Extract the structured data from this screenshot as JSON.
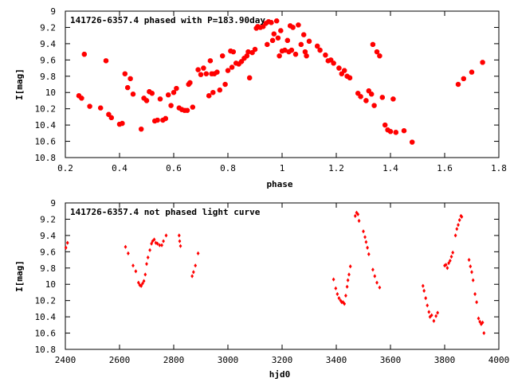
{
  "chart_data": [
    {
      "type": "scatter",
      "title": "141726-6357.4 phased with P=183.90day",
      "xlabel": "phase",
      "ylabel": "I[mag]",
      "xlim": [
        0.2,
        1.8
      ],
      "ylim": [
        9.0,
        10.8
      ],
      "y_inverted": true,
      "grid": false,
      "x_ticks": [
        "0.2",
        "0.4",
        "0.6",
        "0.8",
        "1",
        "1.2",
        "1.4",
        "1.6",
        "1.8"
      ],
      "x_tick_values": [
        0.2,
        0.4,
        0.6,
        0.8,
        1.0,
        1.2,
        1.4,
        1.6,
        1.8
      ],
      "y_ticks": [
        "9",
        "9.2",
        "9.4",
        "9.6",
        "9.8",
        "10",
        "10.2",
        "10.4",
        "10.6",
        "10.8"
      ],
      "y_tick_values": [
        9.0,
        9.2,
        9.4,
        9.6,
        9.8,
        10.0,
        10.2,
        10.4,
        10.6,
        10.8
      ],
      "marker_color": "#ff0000",
      "points": [
        [
          0.25,
          10.04
        ],
        [
          0.26,
          10.07
        ],
        [
          0.27,
          9.53
        ],
        [
          0.29,
          10.17
        ],
        [
          0.33,
          10.19
        ],
        [
          0.35,
          9.61
        ],
        [
          0.36,
          10.27
        ],
        [
          0.37,
          10.31
        ],
        [
          0.4,
          10.39
        ],
        [
          0.41,
          10.38
        ],
        [
          0.42,
          9.77
        ],
        [
          0.43,
          9.94
        ],
        [
          0.44,
          9.83
        ],
        [
          0.45,
          10.02
        ],
        [
          0.48,
          10.45
        ],
        [
          0.49,
          10.07
        ],
        [
          0.5,
          10.1
        ],
        [
          0.51,
          9.99
        ],
        [
          0.52,
          10.01
        ],
        [
          0.53,
          10.35
        ],
        [
          0.54,
          10.34
        ],
        [
          0.55,
          10.08
        ],
        [
          0.56,
          10.34
        ],
        [
          0.57,
          10.32
        ],
        [
          0.58,
          10.03
        ],
        [
          0.59,
          10.16
        ],
        [
          0.6,
          10.0
        ],
        [
          0.61,
          9.95
        ],
        [
          0.62,
          10.19
        ],
        [
          0.63,
          10.21
        ],
        [
          0.64,
          10.22
        ],
        [
          0.65,
          10.22
        ],
        [
          0.655,
          9.9
        ],
        [
          0.66,
          9.88
        ],
        [
          0.67,
          10.18
        ],
        [
          0.69,
          9.72
        ],
        [
          0.7,
          9.78
        ],
        [
          0.71,
          9.7
        ],
        [
          0.72,
          9.77
        ],
        [
          0.73,
          10.04
        ],
        [
          0.735,
          9.61
        ],
        [
          0.74,
          9.77
        ],
        [
          0.745,
          10.0
        ],
        [
          0.75,
          9.77
        ],
        [
          0.76,
          9.75
        ],
        [
          0.77,
          9.97
        ],
        [
          0.78,
          9.55
        ],
        [
          0.79,
          9.9
        ],
        [
          0.8,
          9.73
        ],
        [
          0.81,
          9.49
        ],
        [
          0.815,
          9.69
        ],
        [
          0.82,
          9.5
        ],
        [
          0.83,
          9.64
        ],
        [
          0.84,
          9.65
        ],
        [
          0.85,
          9.62
        ],
        [
          0.86,
          9.58
        ],
        [
          0.87,
          9.55
        ],
        [
          0.875,
          9.5
        ],
        [
          0.88,
          9.82
        ],
        [
          0.89,
          9.51
        ],
        [
          0.9,
          9.47
        ],
        [
          0.905,
          9.21
        ],
        [
          0.91,
          9.19
        ],
        [
          0.92,
          9.2
        ],
        [
          0.93,
          9.19
        ],
        [
          0.94,
          9.15
        ],
        [
          0.945,
          9.41
        ],
        [
          0.95,
          9.13
        ],
        [
          0.96,
          9.14
        ],
        [
          0.965,
          9.36
        ],
        [
          0.97,
          9.28
        ],
        [
          0.98,
          9.12
        ],
        [
          0.985,
          9.33
        ],
        [
          0.99,
          9.55
        ],
        [
          0.995,
          9.24
        ],
        [
          1.0,
          9.49
        ],
        [
          1.01,
          9.48
        ],
        [
          1.02,
          9.36
        ],
        [
          1.025,
          9.5
        ],
        [
          1.03,
          9.18
        ],
        [
          1.035,
          9.48
        ],
        [
          1.04,
          9.2
        ],
        [
          1.05,
          9.53
        ],
        [
          1.06,
          9.17
        ],
        [
          1.07,
          9.41
        ],
        [
          1.08,
          9.29
        ],
        [
          1.085,
          9.5
        ],
        [
          1.09,
          9.55
        ],
        [
          1.1,
          9.37
        ],
        [
          1.13,
          9.43
        ],
        [
          1.14,
          9.48
        ],
        [
          1.16,
          9.54
        ],
        [
          1.17,
          9.61
        ],
        [
          1.18,
          9.6
        ],
        [
          1.19,
          9.64
        ],
        [
          1.21,
          9.7
        ],
        [
          1.22,
          9.77
        ],
        [
          1.23,
          9.73
        ],
        [
          1.24,
          9.8
        ],
        [
          1.25,
          9.82
        ],
        [
          1.28,
          10.01
        ],
        [
          1.29,
          10.05
        ],
        [
          1.31,
          10.1
        ],
        [
          1.32,
          9.98
        ],
        [
          1.33,
          10.02
        ],
        [
          1.335,
          9.41
        ],
        [
          1.34,
          10.16
        ],
        [
          1.35,
          9.5
        ],
        [
          1.36,
          9.55
        ],
        [
          1.37,
          10.06
        ],
        [
          1.38,
          10.4
        ],
        [
          1.39,
          10.46
        ],
        [
          1.4,
          10.48
        ],
        [
          1.41,
          10.08
        ],
        [
          1.42,
          10.49
        ],
        [
          1.45,
          10.47
        ],
        [
          1.48,
          10.61
        ],
        [
          1.65,
          9.9
        ],
        [
          1.67,
          9.83
        ],
        [
          1.7,
          9.75
        ],
        [
          1.74,
          9.63
        ]
      ]
    },
    {
      "type": "scatter",
      "title": "141726-6357.4 not phased light curve",
      "xlabel": "hjd0",
      "ylabel": "I[mag]",
      "xlim": [
        2400,
        4000
      ],
      "ylim": [
        9.0,
        10.8
      ],
      "y_inverted": true,
      "grid": false,
      "x_ticks": [
        "2400",
        "2600",
        "2800",
        "3000",
        "3200",
        "3400",
        "3600",
        "3800",
        "4000"
      ],
      "x_tick_values": [
        2400,
        2600,
        2800,
        3000,
        3200,
        3400,
        3600,
        3800,
        4000
      ],
      "y_ticks": [
        "9",
        "9.2",
        "9.4",
        "9.6",
        "9.8",
        "10",
        "10.2",
        "10.4",
        "10.6",
        "10.8"
      ],
      "y_tick_values": [
        9.0,
        9.2,
        9.4,
        9.6,
        9.8,
        10.0,
        10.2,
        10.4,
        10.6,
        10.8
      ],
      "marker_color": "#ff0000",
      "points": [
        [
          2402,
          9.55
        ],
        [
          2408,
          9.49
        ],
        [
          2622,
          9.54
        ],
        [
          2632,
          9.62
        ],
        [
          2650,
          9.77
        ],
        [
          2660,
          9.84
        ],
        [
          2670,
          9.98
        ],
        [
          2675,
          10.01
        ],
        [
          2680,
          10.02
        ],
        [
          2685,
          9.99
        ],
        [
          2690,
          9.96
        ],
        [
          2695,
          9.88
        ],
        [
          2700,
          9.75
        ],
        [
          2705,
          9.67
        ],
        [
          2712,
          9.58
        ],
        [
          2718,
          9.5
        ],
        [
          2722,
          9.47
        ],
        [
          2728,
          9.45
        ],
        [
          2734,
          9.49
        ],
        [
          2740,
          9.5
        ],
        [
          2748,
          9.52
        ],
        [
          2756,
          9.52
        ],
        [
          2762,
          9.47
        ],
        [
          2772,
          9.4
        ],
        [
          2820,
          9.4
        ],
        [
          2822,
          9.47
        ],
        [
          2825,
          9.53
        ],
        [
          2868,
          9.9
        ],
        [
          2873,
          9.85
        ],
        [
          2880,
          9.77
        ],
        [
          2890,
          9.62
        ],
        [
          3390,
          9.94
        ],
        [
          3398,
          10.05
        ],
        [
          3404,
          10.12
        ],
        [
          3410,
          10.17
        ],
        [
          3416,
          10.2
        ],
        [
          3420,
          10.22
        ],
        [
          3425,
          10.22
        ],
        [
          3430,
          10.24
        ],
        [
          3435,
          10.14
        ],
        [
          3440,
          10.03
        ],
        [
          3443,
          9.95
        ],
        [
          3447,
          9.88
        ],
        [
          3452,
          9.78
        ],
        [
          3470,
          9.16
        ],
        [
          3475,
          9.12
        ],
        [
          3480,
          9.14
        ],
        [
          3484,
          9.22
        ],
        [
          3500,
          9.35
        ],
        [
          3506,
          9.42
        ],
        [
          3510,
          9.48
        ],
        [
          3515,
          9.55
        ],
        [
          3520,
          9.63
        ],
        [
          3535,
          9.82
        ],
        [
          3542,
          9.9
        ],
        [
          3550,
          9.98
        ],
        [
          3560,
          10.04
        ],
        [
          3720,
          10.02
        ],
        [
          3724,
          10.08
        ],
        [
          3730,
          10.17
        ],
        [
          3736,
          10.26
        ],
        [
          3742,
          10.34
        ],
        [
          3746,
          10.4
        ],
        [
          3752,
          10.38
        ],
        [
          3760,
          10.45
        ],
        [
          3768,
          10.39
        ],
        [
          3774,
          10.35
        ],
        [
          3800,
          9.77
        ],
        [
          3805,
          9.76
        ],
        [
          3810,
          9.8
        ],
        [
          3815,
          9.74
        ],
        [
          3820,
          9.71
        ],
        [
          3825,
          9.66
        ],
        [
          3830,
          9.61
        ],
        [
          3840,
          9.4
        ],
        [
          3845,
          9.32
        ],
        [
          3850,
          9.27
        ],
        [
          3855,
          9.21
        ],
        [
          3860,
          9.16
        ],
        [
          3863,
          9.17
        ],
        [
          3890,
          9.7
        ],
        [
          3895,
          9.78
        ],
        [
          3900,
          9.85
        ],
        [
          3905,
          9.95
        ],
        [
          3912,
          10.12
        ],
        [
          3918,
          10.22
        ],
        [
          3925,
          10.42
        ],
        [
          3930,
          10.46
        ],
        [
          3935,
          10.49
        ],
        [
          3940,
          10.47
        ],
        [
          3945,
          10.6
        ]
      ]
    }
  ]
}
